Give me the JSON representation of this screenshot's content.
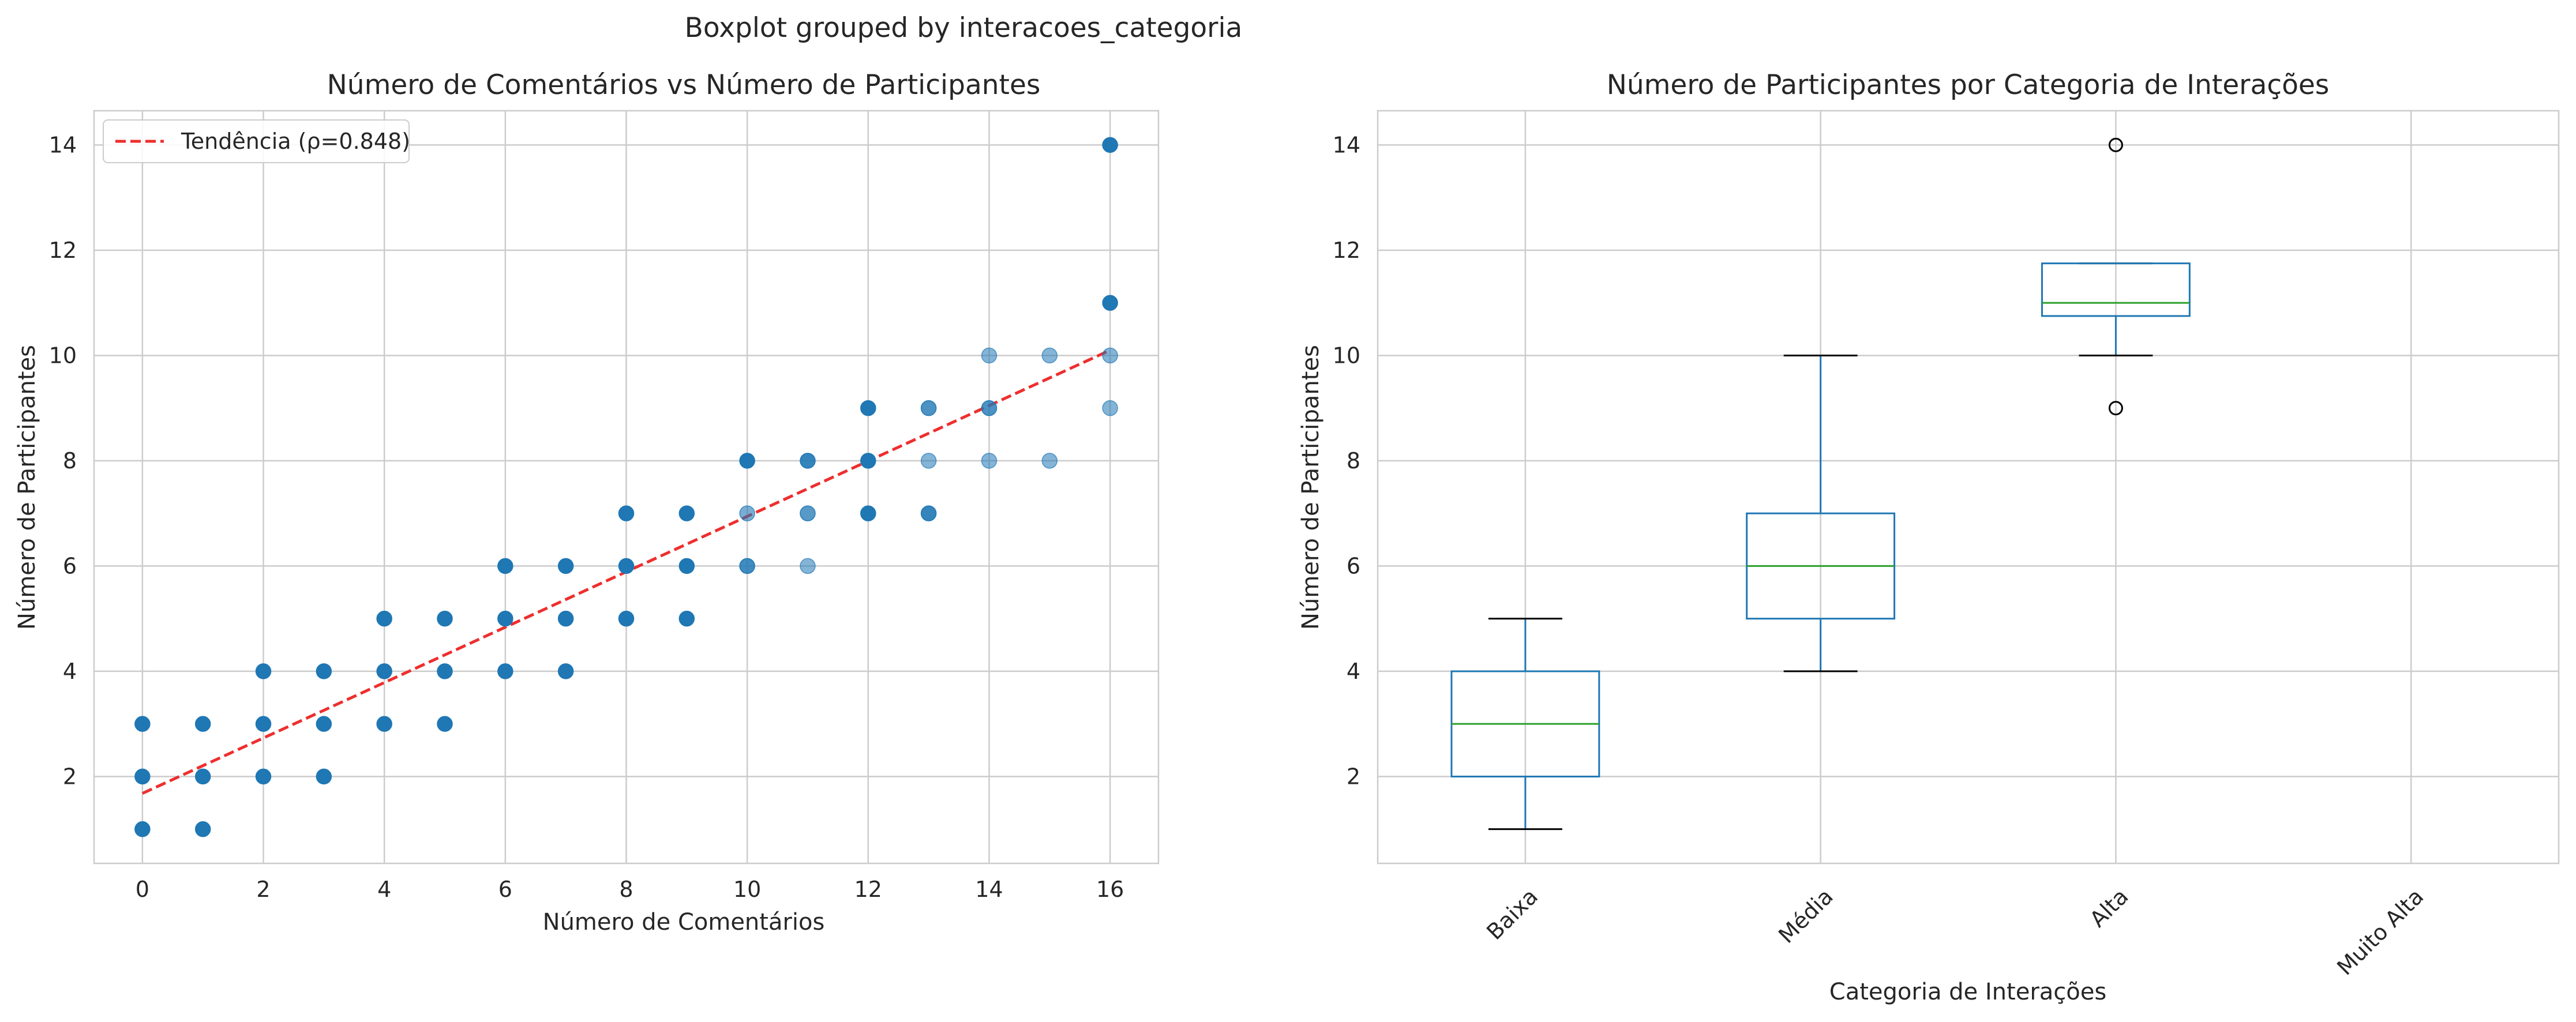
{
  "suptitle": "Boxplot grouped by interacoes_categoria",
  "chart_data": [
    {
      "type": "scatter",
      "title": "Número de Comentários vs Número de Participantes",
      "xlabel": "Número de Comentários",
      "ylabel": "Número de Participantes",
      "xlim": [
        -0.8,
        16.8
      ],
      "ylim": [
        0.35,
        14.65
      ],
      "xticks": [
        0,
        2,
        4,
        6,
        8,
        10,
        12,
        14,
        16
      ],
      "yticks": [
        2,
        4,
        6,
        8,
        10,
        12,
        14
      ],
      "grid": true,
      "point_color": "#1f77b4",
      "points": [
        {
          "x": 0,
          "y": 1,
          "alpha": 1
        },
        {
          "x": 0,
          "y": 2,
          "alpha": 1
        },
        {
          "x": 0,
          "y": 3,
          "alpha": 1
        },
        {
          "x": 1,
          "y": 1,
          "alpha": 1
        },
        {
          "x": 1,
          "y": 2,
          "alpha": 1
        },
        {
          "x": 1,
          "y": 3,
          "alpha": 1
        },
        {
          "x": 2,
          "y": 2,
          "alpha": 1
        },
        {
          "x": 2,
          "y": 3,
          "alpha": 1
        },
        {
          "x": 2,
          "y": 4,
          "alpha": 1
        },
        {
          "x": 3,
          "y": 2,
          "alpha": 1
        },
        {
          "x": 3,
          "y": 3,
          "alpha": 1
        },
        {
          "x": 3,
          "y": 4,
          "alpha": 1
        },
        {
          "x": 4,
          "y": 3,
          "alpha": 1
        },
        {
          "x": 4,
          "y": 4,
          "alpha": 1
        },
        {
          "x": 4,
          "y": 5,
          "alpha": 1
        },
        {
          "x": 5,
          "y": 3,
          "alpha": 1
        },
        {
          "x": 5,
          "y": 4,
          "alpha": 1
        },
        {
          "x": 5,
          "y": 5,
          "alpha": 1
        },
        {
          "x": 6,
          "y": 4,
          "alpha": 1
        },
        {
          "x": 6,
          "y": 5,
          "alpha": 1
        },
        {
          "x": 6,
          "y": 6,
          "alpha": 1
        },
        {
          "x": 7,
          "y": 4,
          "alpha": 1
        },
        {
          "x": 7,
          "y": 5,
          "alpha": 1
        },
        {
          "x": 7,
          "y": 6,
          "alpha": 1
        },
        {
          "x": 8,
          "y": 5,
          "alpha": 1
        },
        {
          "x": 8,
          "y": 6,
          "alpha": 1
        },
        {
          "x": 8,
          "y": 7,
          "alpha": 1
        },
        {
          "x": 9,
          "y": 5,
          "alpha": 1
        },
        {
          "x": 9,
          "y": 6,
          "alpha": 1
        },
        {
          "x": 9,
          "y": 7,
          "alpha": 1
        },
        {
          "x": 10,
          "y": 6,
          "alpha": 0.85
        },
        {
          "x": 10,
          "y": 7,
          "alpha": 0.6
        },
        {
          "x": 10,
          "y": 8,
          "alpha": 1
        },
        {
          "x": 11,
          "y": 6,
          "alpha": 0.55
        },
        {
          "x": 11,
          "y": 7,
          "alpha": 0.75
        },
        {
          "x": 11,
          "y": 8,
          "alpha": 0.9
        },
        {
          "x": 12,
          "y": 7,
          "alpha": 1
        },
        {
          "x": 12,
          "y": 8,
          "alpha": 1
        },
        {
          "x": 12,
          "y": 9,
          "alpha": 1
        },
        {
          "x": 13,
          "y": 7,
          "alpha": 0.9
        },
        {
          "x": 13,
          "y": 8,
          "alpha": 0.55
        },
        {
          "x": 13,
          "y": 9,
          "alpha": 0.8
        },
        {
          "x": 14,
          "y": 8,
          "alpha": 0.55
        },
        {
          "x": 14,
          "y": 9,
          "alpha": 0.8
        },
        {
          "x": 14,
          "y": 10,
          "alpha": 0.55
        },
        {
          "x": 15,
          "y": 8,
          "alpha": 0.55
        },
        {
          "x": 15,
          "y": 10,
          "alpha": 0.55
        },
        {
          "x": 16,
          "y": 9,
          "alpha": 0.55
        },
        {
          "x": 16,
          "y": 10,
          "alpha": 0.55
        },
        {
          "x": 16,
          "y": 11,
          "alpha": 1
        },
        {
          "x": 16,
          "y": 14,
          "alpha": 1
        }
      ],
      "trendline": {
        "label": "Tendência (ρ=0.848)",
        "x": [
          0,
          16
        ],
        "y": [
          1.68,
          10.1
        ],
        "color": "#ee2e2e"
      },
      "legend_position": "top-left"
    },
    {
      "type": "boxplot",
      "title": "Número de Participantes por Categoria de Interações",
      "xlabel": "Categoria de Interações",
      "ylabel": "Número de Participantes",
      "ylim": [
        0.35,
        14.65
      ],
      "yticks": [
        2,
        4,
        6,
        8,
        10,
        12,
        14
      ],
      "grid": true,
      "box_color": "#1f77b4",
      "median_color": "#2ca02c",
      "whisker_cap_color": "#000000",
      "categories": [
        "Baixa",
        "Média",
        "Alta",
        "Muito Alta"
      ],
      "boxes": [
        {
          "category": "Baixa",
          "whislo": 1,
          "q1": 2,
          "med": 3,
          "q3": 4,
          "whishi": 5,
          "fliers": []
        },
        {
          "category": "Média",
          "whislo": 4,
          "q1": 5,
          "med": 6,
          "q3": 7,
          "whishi": 10,
          "fliers": []
        },
        {
          "category": "Alta",
          "whislo": 10,
          "q1": 10.75,
          "med": 11,
          "q3": 11.75,
          "whishi": 11.75,
          "fliers": [
            9,
            14
          ]
        },
        {
          "category": "Muito Alta",
          "empty": true
        }
      ]
    }
  ]
}
